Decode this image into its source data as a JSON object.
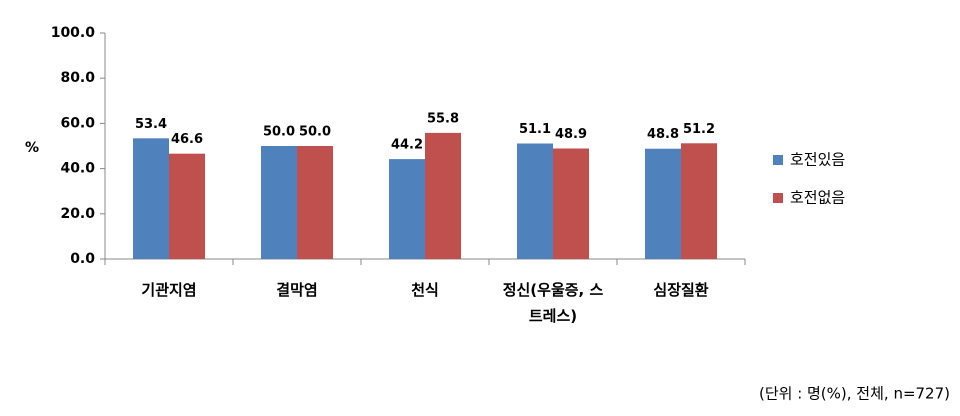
{
  "chart_data": {
    "type": "bar",
    "y_label": "%",
    "categories": [
      "기관지염",
      "결막염",
      "천식",
      "정신(우울증, 스트레스)",
      "심장질환"
    ],
    "series": [
      {
        "name": "호전있음",
        "color": "#4f81bd",
        "values": [
          53.4,
          50,
          44.2,
          51.1,
          48.8
        ],
        "value_labels": [
          "53.4",
          "50.0",
          "44.2",
          "51.1",
          "48.8"
        ]
      },
      {
        "name": "호전없음",
        "color": "#c0504d",
        "values": [
          46.6,
          50,
          55.8,
          48.9,
          51.2
        ],
        "value_labels": [
          "46.6",
          "50.0",
          "55.8",
          "48.9",
          "51.2"
        ]
      }
    ],
    "ylim": [
      0,
      100
    ],
    "yticks": [
      {
        "value": 0,
        "label": "0.0"
      },
      {
        "value": 20,
        "label": "20.0"
      },
      {
        "value": 40,
        "label": "40.0"
      },
      {
        "value": 60,
        "label": "60.0"
      },
      {
        "value": 80,
        "label": "80.0"
      },
      {
        "value": 100,
        "label": "100.0"
      }
    ],
    "legend": "right",
    "note": "(단위 : 명(%), 전체, n=727)"
  }
}
